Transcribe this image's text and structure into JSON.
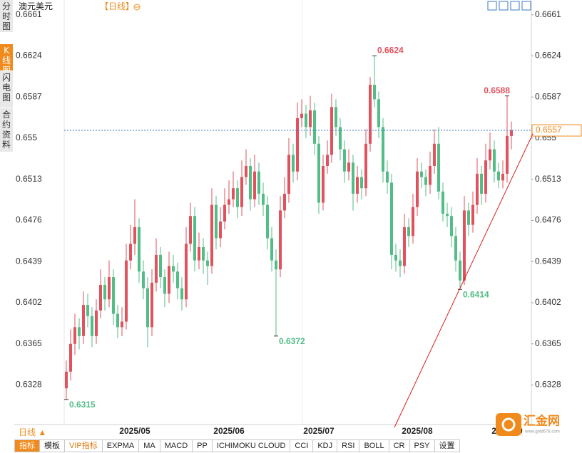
{
  "chart_data": {
    "type": "candlestick",
    "title": "澳元美元",
    "period": "【日线】",
    "categories": [
      null,
      null,
      null,
      null,
      null,
      null,
      null,
      null,
      null,
      null,
      null,
      null,
      null,
      null,
      null,
      null,
      "2025/05",
      null,
      null,
      null,
      null,
      null,
      null,
      null,
      null,
      null,
      null,
      null,
      null,
      null,
      null,
      null,
      null,
      null,
      null,
      null,
      null,
      null,
      "2025/06",
      null,
      null,
      null,
      null,
      null,
      null,
      null,
      null,
      null,
      null,
      null,
      null,
      null,
      null,
      null,
      null,
      null,
      null,
      null,
      null,
      "2025/07",
      null,
      null,
      null,
      null,
      null,
      null,
      null,
      null,
      null,
      null,
      null,
      null,
      null,
      null,
      null,
      null,
      null,
      null,
      null,
      null,
      null,
      null,
      "2025/08",
      null,
      null,
      null,
      null,
      null,
      null,
      null,
      null,
      null,
      null,
      null,
      null,
      null,
      null,
      null,
      null,
      null,
      null,
      null,
      null,
      "2025/09",
      null
    ],
    "ohlc": [
      [
        0.6325,
        0.635,
        0.6315,
        0.634
      ],
      [
        0.634,
        0.6378,
        0.6332,
        0.6365
      ],
      [
        0.6365,
        0.6392,
        0.6355,
        0.638
      ],
      [
        0.638,
        0.6388,
        0.636,
        0.6372
      ],
      [
        0.6372,
        0.6412,
        0.6365,
        0.64
      ],
      [
        0.64,
        0.641,
        0.638,
        0.639
      ],
      [
        0.639,
        0.6398,
        0.6362,
        0.6372
      ],
      [
        0.6372,
        0.6405,
        0.6365,
        0.6395
      ],
      [
        0.6395,
        0.6432,
        0.6388,
        0.6418
      ],
      [
        0.6418,
        0.6425,
        0.6395,
        0.6405
      ],
      [
        0.6405,
        0.644,
        0.6398,
        0.6425
      ],
      [
        0.6425,
        0.6432,
        0.6382,
        0.6392
      ],
      [
        0.6392,
        0.64,
        0.637,
        0.638
      ],
      [
        0.638,
        0.6398,
        0.6372,
        0.6385
      ],
      [
        0.6385,
        0.6455,
        0.6378,
        0.644
      ],
      [
        0.644,
        0.6472,
        0.6432,
        0.6455
      ],
      [
        0.6455,
        0.6495,
        0.6445,
        0.647
      ],
      [
        0.647,
        0.6478,
        0.642,
        0.643
      ],
      [
        0.643,
        0.644,
        0.6405,
        0.6415
      ],
      [
        0.6415,
        0.6425,
        0.6362,
        0.638
      ],
      [
        0.638,
        0.6432,
        0.6372,
        0.642
      ],
      [
        0.642,
        0.646,
        0.6412,
        0.6445
      ],
      [
        0.6445,
        0.6452,
        0.6415,
        0.6425
      ],
      [
        0.6425,
        0.6432,
        0.6398,
        0.641
      ],
      [
        0.641,
        0.6448,
        0.6402,
        0.6435
      ],
      [
        0.6435,
        0.6445,
        0.642,
        0.643
      ],
      [
        0.643,
        0.6438,
        0.6405,
        0.6415
      ],
      [
        0.6415,
        0.6425,
        0.6395,
        0.6405
      ],
      [
        0.6405,
        0.647,
        0.6398,
        0.6455
      ],
      [
        0.6455,
        0.6492,
        0.6448,
        0.648
      ],
      [
        0.648,
        0.6488,
        0.643,
        0.644
      ],
      [
        0.644,
        0.6465,
        0.6432,
        0.6452
      ],
      [
        0.6452,
        0.646,
        0.6428,
        0.644
      ],
      [
        0.644,
        0.6448,
        0.6418,
        0.6435
      ],
      [
        0.6435,
        0.6505,
        0.6428,
        0.649
      ],
      [
        0.649,
        0.6498,
        0.645,
        0.646
      ],
      [
        0.646,
        0.6488,
        0.6452,
        0.6475
      ],
      [
        0.6475,
        0.6505,
        0.6468,
        0.649
      ],
      [
        0.649,
        0.6512,
        0.6482,
        0.6495
      ],
      [
        0.6495,
        0.652,
        0.6488,
        0.6505
      ],
      [
        0.6505,
        0.6512,
        0.6478,
        0.6488
      ],
      [
        0.6488,
        0.653,
        0.648,
        0.6515
      ],
      [
        0.6515,
        0.654,
        0.6508,
        0.6525
      ],
      [
        0.6525,
        0.6532,
        0.6485,
        0.6495
      ],
      [
        0.6495,
        0.6535,
        0.6488,
        0.652
      ],
      [
        0.652,
        0.6528,
        0.649,
        0.65
      ],
      [
        0.65,
        0.651,
        0.648,
        0.649
      ],
      [
        0.649,
        0.6498,
        0.645,
        0.646
      ],
      [
        0.646,
        0.647,
        0.643,
        0.644
      ],
      [
        0.644,
        0.645,
        0.6372,
        0.6432
      ],
      [
        0.6432,
        0.6498,
        0.6425,
        0.6485
      ],
      [
        0.6485,
        0.6515,
        0.6478,
        0.65
      ],
      [
        0.65,
        0.655,
        0.6492,
        0.6535
      ],
      [
        0.6535,
        0.6545,
        0.651,
        0.652
      ],
      [
        0.652,
        0.6582,
        0.6512,
        0.6568
      ],
      [
        0.6568,
        0.6585,
        0.656,
        0.6572
      ],
      [
        0.6572,
        0.658,
        0.655,
        0.656
      ],
      [
        0.656,
        0.6588,
        0.6552,
        0.6575
      ],
      [
        0.6575,
        0.6582,
        0.6535,
        0.6545
      ],
      [
        0.6545,
        0.6552,
        0.6482,
        0.6492
      ],
      [
        0.6492,
        0.6535,
        0.6485,
        0.6525
      ],
      [
        0.6525,
        0.6548,
        0.6518,
        0.6535
      ],
      [
        0.6535,
        0.659,
        0.6528,
        0.6578
      ],
      [
        0.6578,
        0.6585,
        0.6552,
        0.656
      ],
      [
        0.656,
        0.6568,
        0.653,
        0.654
      ],
      [
        0.654,
        0.6548,
        0.651,
        0.652
      ],
      [
        0.652,
        0.654,
        0.6512,
        0.6528
      ],
      [
        0.6528,
        0.6535,
        0.6485,
        0.65
      ],
      [
        0.65,
        0.6525,
        0.6492,
        0.6515
      ],
      [
        0.6515,
        0.6522,
        0.6495,
        0.6505
      ],
      [
        0.6505,
        0.6558,
        0.6498,
        0.6545
      ],
      [
        0.6545,
        0.6605,
        0.6538,
        0.6598
      ],
      [
        0.6598,
        0.6624,
        0.6578,
        0.6585
      ],
      [
        0.6585,
        0.6592,
        0.655,
        0.656
      ],
      [
        0.656,
        0.6568,
        0.651,
        0.652
      ],
      [
        0.652,
        0.653,
        0.65,
        0.651
      ],
      [
        0.651,
        0.6518,
        0.6432,
        0.6445
      ],
      [
        0.6445,
        0.6455,
        0.643,
        0.644
      ],
      [
        0.644,
        0.645,
        0.6425,
        0.6435
      ],
      [
        0.6435,
        0.6482,
        0.6428,
        0.647
      ],
      [
        0.647,
        0.6478,
        0.6452,
        0.6462
      ],
      [
        0.6462,
        0.65,
        0.6455,
        0.6488
      ],
      [
        0.6488,
        0.6532,
        0.648,
        0.652
      ],
      [
        0.652,
        0.6528,
        0.6505,
        0.6515
      ],
      [
        0.6515,
        0.6522,
        0.6498,
        0.6508
      ],
      [
        0.6508,
        0.6538,
        0.65,
        0.6525
      ],
      [
        0.6525,
        0.6558,
        0.6518,
        0.6545
      ],
      [
        0.6545,
        0.656,
        0.6495,
        0.6502
      ],
      [
        0.6502,
        0.651,
        0.6475,
        0.6482
      ],
      [
        0.6482,
        0.6492,
        0.647,
        0.648
      ],
      [
        0.648,
        0.6488,
        0.6452,
        0.6462
      ],
      [
        0.6462,
        0.647,
        0.643,
        0.644
      ],
      [
        0.644,
        0.6448,
        0.6414,
        0.6422
      ],
      [
        0.6422,
        0.6498,
        0.6418,
        0.6485
      ],
      [
        0.6485,
        0.6492,
        0.6462,
        0.6472
      ],
      [
        0.6472,
        0.6502,
        0.6465,
        0.649
      ],
      [
        0.649,
        0.6532,
        0.6482,
        0.6518
      ],
      [
        0.6518,
        0.6525,
        0.649,
        0.65
      ],
      [
        0.65,
        0.6545,
        0.6492,
        0.653
      ],
      [
        0.653,
        0.6555,
        0.6522,
        0.654
      ],
      [
        0.654,
        0.6548,
        0.651,
        0.652
      ],
      [
        0.652,
        0.6528,
        0.6505,
        0.6512
      ],
      [
        0.6512,
        0.653,
        0.6505,
        0.6518
      ],
      [
        0.6518,
        0.6588,
        0.651,
        0.6552
      ],
      [
        0.6552,
        0.6565,
        0.654,
        0.6557
      ]
    ],
    "up_color": "#e2515e",
    "down_color": "#52bd86",
    "ylim": [
      0.6295,
      0.6673
    ],
    "yticks": [
      0.6661,
      0.6624,
      0.6587,
      0.655,
      0.6513,
      0.6476,
      0.6439,
      0.6402,
      0.6365,
      0.6328
    ],
    "period_button": "日线 ▲"
  },
  "side_tabs": [
    "分时图",
    "K线图",
    "闪电图",
    "合约资料"
  ],
  "toolbar": [
    "指标",
    "模板",
    "VIP指标",
    "EXPMA",
    "MA",
    "MACD",
    "PP",
    "ICHIMOKU CLOUD",
    "CCI",
    "KDJ",
    "RSI",
    "BOLL",
    "CR",
    "PSY",
    "设置"
  ],
  "logo": {
    "name": "汇金网",
    "url": "www.gold678.com"
  }
}
